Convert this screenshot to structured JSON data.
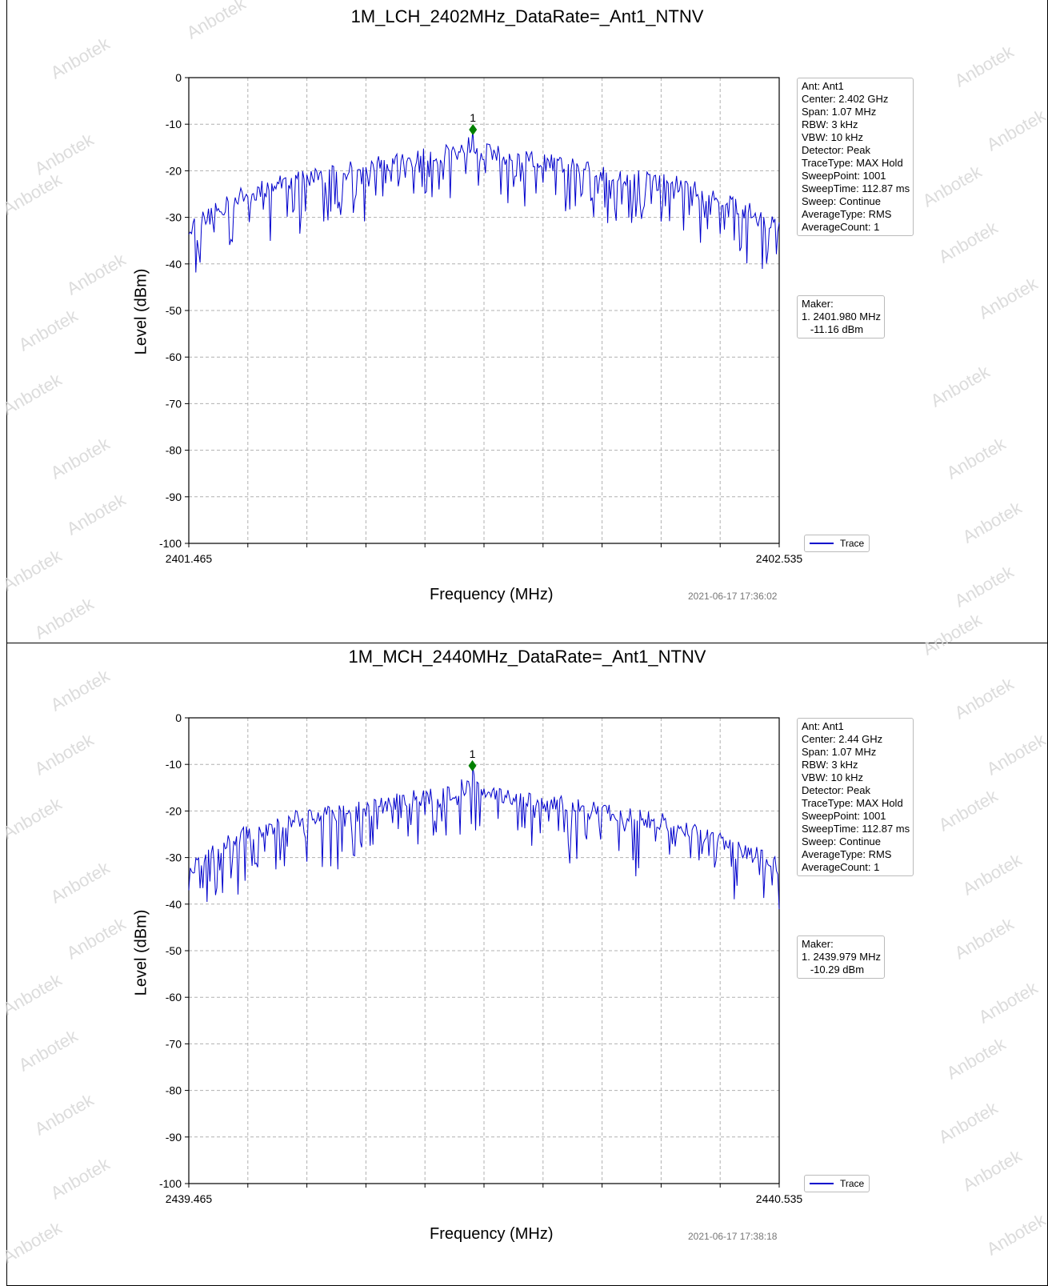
{
  "chart_data": [
    {
      "type": "line",
      "title": "1M_LCH_2402MHz_DataRate=_Ant1_NTNV",
      "xlabel": "Frequency (MHz)",
      "ylabel": "Level (dBm)",
      "xlim": [
        2401.465,
        2402.535
      ],
      "ylim": [
        -100,
        0
      ],
      "x_tick_labels": [
        "2401.465",
        "2402.535"
      ],
      "y_ticks": [
        0,
        -10,
        -20,
        -30,
        -40,
        -50,
        -60,
        -70,
        -80,
        -90,
        -100
      ],
      "grid": true,
      "series": [
        {
          "name": "Trace",
          "color": "#0000cc",
          "x": [
            2401.465,
            2401.5,
            2401.55,
            2401.6,
            2401.65,
            2401.7,
            2401.75,
            2401.8,
            2401.85,
            2401.9,
            2401.95,
            2401.98,
            2402.0,
            2402.05,
            2402.1,
            2402.15,
            2402.2,
            2402.25,
            2402.3,
            2402.35,
            2402.4,
            2402.45,
            2402.5,
            2402.535
          ],
          "values": [
            -29,
            -27,
            -23,
            -21,
            -19,
            -18,
            -17,
            -16,
            -15,
            -14,
            -13,
            -11.16,
            -13,
            -14,
            -15,
            -16,
            -17,
            -18,
            -19,
            -20,
            -22,
            -24,
            -27,
            -29
          ]
        }
      ],
      "marker": {
        "label": "1",
        "x": 2401.98,
        "y": -11.16,
        "color": "#008000"
      }
    },
    {
      "type": "line",
      "title": "1M_MCH_2440MHz_DataRate=_Ant1_NTNV",
      "xlabel": "Frequency (MHz)",
      "ylabel": "Level (dBm)",
      "xlim": [
        2439.465,
        2440.535
      ],
      "ylim": [
        -100,
        0
      ],
      "x_tick_labels": [
        "2439.465",
        "2440.535"
      ],
      "y_ticks": [
        0,
        -10,
        -20,
        -30,
        -40,
        -50,
        -60,
        -70,
        -80,
        -90,
        -100
      ],
      "grid": true,
      "series": [
        {
          "name": "Trace",
          "color": "#0000cc",
          "x": [
            2439.465,
            2439.5,
            2439.55,
            2439.6,
            2439.65,
            2439.7,
            2439.75,
            2439.8,
            2439.85,
            2439.9,
            2439.95,
            2439.979,
            2440.0,
            2440.05,
            2440.1,
            2440.15,
            2440.2,
            2440.25,
            2440.3,
            2440.35,
            2440.4,
            2440.45,
            2440.5,
            2440.535
          ],
          "values": [
            -29,
            -27,
            -23,
            -21,
            -19,
            -18,
            -17,
            -16,
            -15,
            -14,
            -13,
            -10.29,
            -13,
            -14,
            -15,
            -16,
            -17,
            -18,
            -19,
            -20,
            -22,
            -24,
            -27,
            -29
          ]
        }
      ],
      "marker": {
        "label": "1",
        "x": 2439.979,
        "y": -10.29,
        "color": "#008000"
      }
    }
  ],
  "panels": [
    {
      "title": "1M_LCH_2402MHz_DataRate=_Ant1_NTNV",
      "info": [
        "Ant: Ant1",
        "Center: 2.402 GHz",
        "Span: 1.07 MHz",
        "RBW: 3 kHz",
        "VBW: 10 kHz",
        "Detector: Peak",
        "TraceType: MAX Hold",
        "SweepPoint: 1001",
        "SweepTime: 112.87 ms",
        "Sweep: Continue",
        "AverageType: RMS",
        "AverageCount: 1"
      ],
      "maker": [
        "Maker:",
        "1. 2401.980 MHz",
        "   -11.16 dBm"
      ],
      "legend": "Trace",
      "xlabel": "Frequency (MHz)",
      "ylabel": "Level (dBm)",
      "timestamp": "2021-06-17 17:36:02",
      "marker_label": "1"
    },
    {
      "title": "1M_MCH_2440MHz_DataRate=_Ant1_NTNV",
      "info": [
        "Ant: Ant1",
        "Center: 2.44 GHz",
        "Span: 1.07 MHz",
        "RBW: 3 kHz",
        "VBW: 10 kHz",
        "Detector: Peak",
        "TraceType: MAX Hold",
        "SweepPoint: 1001",
        "SweepTime: 112.87 ms",
        "Sweep: Continue",
        "AverageType: RMS",
        "AverageCount: 1"
      ],
      "maker": [
        "Maker:",
        "1. 2439.979 MHz",
        "   -10.29 dBm"
      ],
      "legend": "Trace",
      "xlabel": "Frequency (MHz)",
      "ylabel": "Level (dBm)",
      "timestamp": "2021-06-17 17:38:18",
      "marker_label": "1"
    }
  ],
  "watermark": "Anbotek",
  "colors": {
    "trace": "#0000cc",
    "marker": "#008000",
    "grid": "#b0b0b0"
  }
}
